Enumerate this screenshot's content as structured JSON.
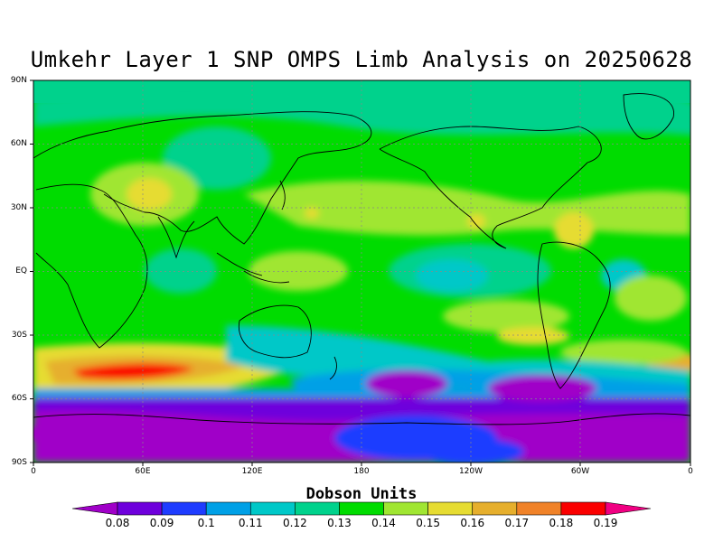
{
  "title": "Umkehr Layer 1 SNP OMPS Limb Analysis on 20250628",
  "chart_data": {
    "type": "heatmap",
    "title": "Umkehr Layer 1 SNP OMPS Limb Analysis on 20250628",
    "colorbar_title": "Dobson Units",
    "lat_ticks": [
      "90N",
      "60N",
      "30N",
      "EQ",
      "30S",
      "60S",
      "90S"
    ],
    "lon_ticks": [
      "0",
      "60E",
      "120E",
      "180",
      "120W",
      "60W",
      "0"
    ],
    "levels": [
      "0.08",
      "0.09",
      "0.1",
      "0.11",
      "0.12",
      "0.13",
      "0.14",
      "0.15",
      "0.16",
      "0.17",
      "0.18",
      "0.19"
    ],
    "level_colors": [
      "#a000c8",
      "#6e00dc",
      "#1e3cff",
      "#00a0e6",
      "#00c8c8",
      "#00d28c",
      "#00dc00",
      "#a0e632",
      "#e6dc32",
      "#e6af2d",
      "#f08228",
      "#fa0000",
      "#f00082"
    ],
    "grid": true,
    "features": [
      {
        "lat": -47,
        "lon": 70,
        "value": 0.185
      },
      {
        "lat": -44,
        "lon": 40,
        "value": 0.175
      },
      {
        "lat": 33,
        "lon": 62,
        "value": 0.158
      },
      {
        "lat": 22,
        "lon": -70,
        "value": 0.158
      },
      {
        "lat": -62,
        "lon": 150,
        "value": 0.085
      },
      {
        "lat": -72,
        "lon": -100,
        "value": 0.088
      },
      {
        "lat": -80,
        "lon": 0,
        "value": 0.082
      }
    ]
  }
}
